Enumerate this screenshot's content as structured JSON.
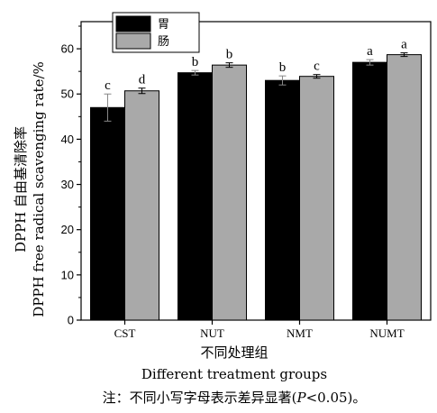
{
  "chart_data": {
    "type": "bar",
    "categories": [
      "CST",
      "NUT",
      "NMT",
      "NUMT"
    ],
    "series": [
      {
        "name": "胃",
        "color": "#000000",
        "values": [
          47.0,
          54.7,
          53.0,
          57.0
        ],
        "errors": [
          3.0,
          0.5,
          1.0,
          0.6
        ],
        "labels": [
          "c",
          "b",
          "b",
          "a"
        ]
      },
      {
        "name": "肠",
        "color": "#a9a9a9",
        "values": [
          50.7,
          56.4,
          53.9,
          58.7
        ],
        "errors": [
          0.6,
          0.5,
          0.4,
          0.4
        ],
        "labels": [
          "d",
          "b",
          "c",
          "a"
        ]
      }
    ],
    "yticks": [
      0,
      10,
      20,
      30,
      40,
      50,
      60
    ],
    "ylim": [
      0,
      66
    ],
    "ylabel_line1": "DPPH 自由基清除率",
    "ylabel_line2": "DPPH free radical scavenging rate/%",
    "xlabel_cn": "不同处理组",
    "xlabel_en": "Different treatment groups",
    "legend_position": "top-left"
  },
  "footnote": {
    "prefix": "注：不同小写字母表示差异显著(",
    "p_symbol": "P",
    "suffix": "<0.05)。"
  }
}
